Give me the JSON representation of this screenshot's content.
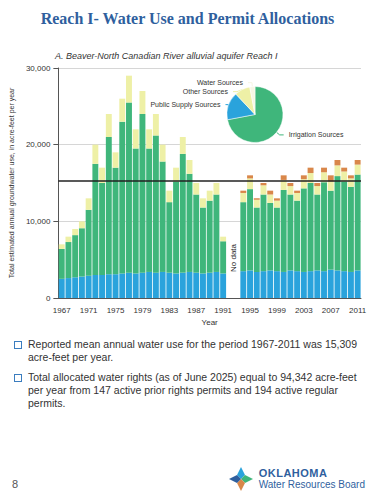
{
  "title": "Reach I- Water Use and Permit Allocations",
  "chart_data": [
    {
      "type": "bar",
      "title": "A. Beaver-North Canadian River alluvial aquifer Reach I",
      "x_label": "Year",
      "y_label": "Total estimated annual groundwater use, in acre-feet per year",
      "categories": [
        "1967",
        null,
        null,
        null,
        "1971",
        null,
        null,
        null,
        "1975",
        null,
        null,
        null,
        "1979",
        null,
        null,
        null,
        "1983",
        null,
        null,
        null,
        "1987",
        null,
        null,
        null,
        "1991",
        null,
        null,
        null,
        "1995",
        null,
        null,
        null,
        "1999",
        null,
        null,
        null,
        "2003",
        null,
        null,
        null,
        "2007",
        null,
        null,
        null,
        "2011"
      ],
      "series": [
        {
          "color": "#2aa3dc",
          "values": [
            2500,
            2600,
            2700,
            2800,
            2900,
            3000,
            3000,
            3100,
            3100,
            3200,
            3300,
            3200,
            3300,
            3400,
            3300,
            3400,
            3300,
            3200,
            3300,
            3400,
            3300,
            3200,
            3300,
            3400,
            3200,
            null,
            null,
            3500,
            3600,
            3400,
            3500,
            3600,
            3500,
            3400,
            3600,
            3500,
            3400,
            3500,
            3600,
            3500,
            3700,
            3600,
            3500,
            3400,
            3600
          ]
        },
        {
          "color": "#3fb67b",
          "values": [
            3900,
            4700,
            5500,
            6300,
            8600,
            14500,
            12000,
            17900,
            13900,
            19800,
            22200,
            16300,
            20700,
            16100,
            17900,
            14400,
            9200,
            12000,
            15500,
            12800,
            10200,
            8600,
            9400,
            10100,
            4200,
            null,
            null,
            9000,
            10600,
            8400,
            10000,
            8800,
            8300,
            10700,
            9900,
            9200,
            10900,
            11500,
            9900,
            11600,
            10300,
            12300,
            11700,
            11100,
            12500
          ]
        },
        {
          "color": "#eef0a6",
          "values": [
            600,
            700,
            800,
            900,
            1500,
            2500,
            2000,
            3000,
            2000,
            3000,
            3500,
            2500,
            3000,
            2500,
            2800,
            2200,
            1500,
            1800,
            2200,
            1800,
            1500,
            1200,
            1300,
            1500,
            600,
            null,
            null,
            1200,
            1400,
            1000,
            1200,
            1100,
            900,
            1300,
            1100,
            1000,
            1200,
            1300,
            1100,
            1300,
            1200,
            1400,
            1300,
            1100,
            1300
          ]
        },
        {
          "color": "#d9874a",
          "values": [
            0,
            0,
            0,
            0,
            0,
            0,
            0,
            0,
            0,
            0,
            0,
            0,
            0,
            0,
            0,
            0,
            0,
            0,
            0,
            0,
            0,
            0,
            0,
            0,
            0,
            null,
            null,
            300,
            400,
            200,
            300,
            500,
            300,
            600,
            400,
            300,
            500,
            700,
            400,
            600,
            800,
            700,
            500,
            400,
            600
          ]
        }
      ],
      "stacked": true,
      "ylim": [
        0,
        30000
      ],
      "yticks": [
        0,
        {
          "value": 10000,
          "label": "10,000"
        },
        {
          "value": 20000,
          "label": "20,000"
        },
        {
          "value": 30000,
          "label": "30,000"
        }
      ],
      "grid": true,
      "mean_line": 15309,
      "annotations": [
        {
          "text": "No data"
        }
      ]
    },
    {
      "type": "pie",
      "categories": [
        "Irrigation Sources",
        "Public Supply Sources",
        "Other Sources",
        "Water Sources"
      ],
      "values": [
        72,
        16,
        9,
        3
      ],
      "colors": [
        "#3fb67b",
        "#2aa3dc",
        "#eef0a6",
        "#f6f6e4"
      ]
    }
  ],
  "notes": [
    "Reported mean annual water use for the period 1967-2011 was 15,309 acre-feet per year.",
    "Total allocated water rights (as of June 2025) equal to 94,342 acre-feet per year from 147 active prior rights permits and 194 active regular permits."
  ],
  "page_number": "8",
  "logo": [
    "OKLAHOMA",
    "Water Resources Board"
  ]
}
